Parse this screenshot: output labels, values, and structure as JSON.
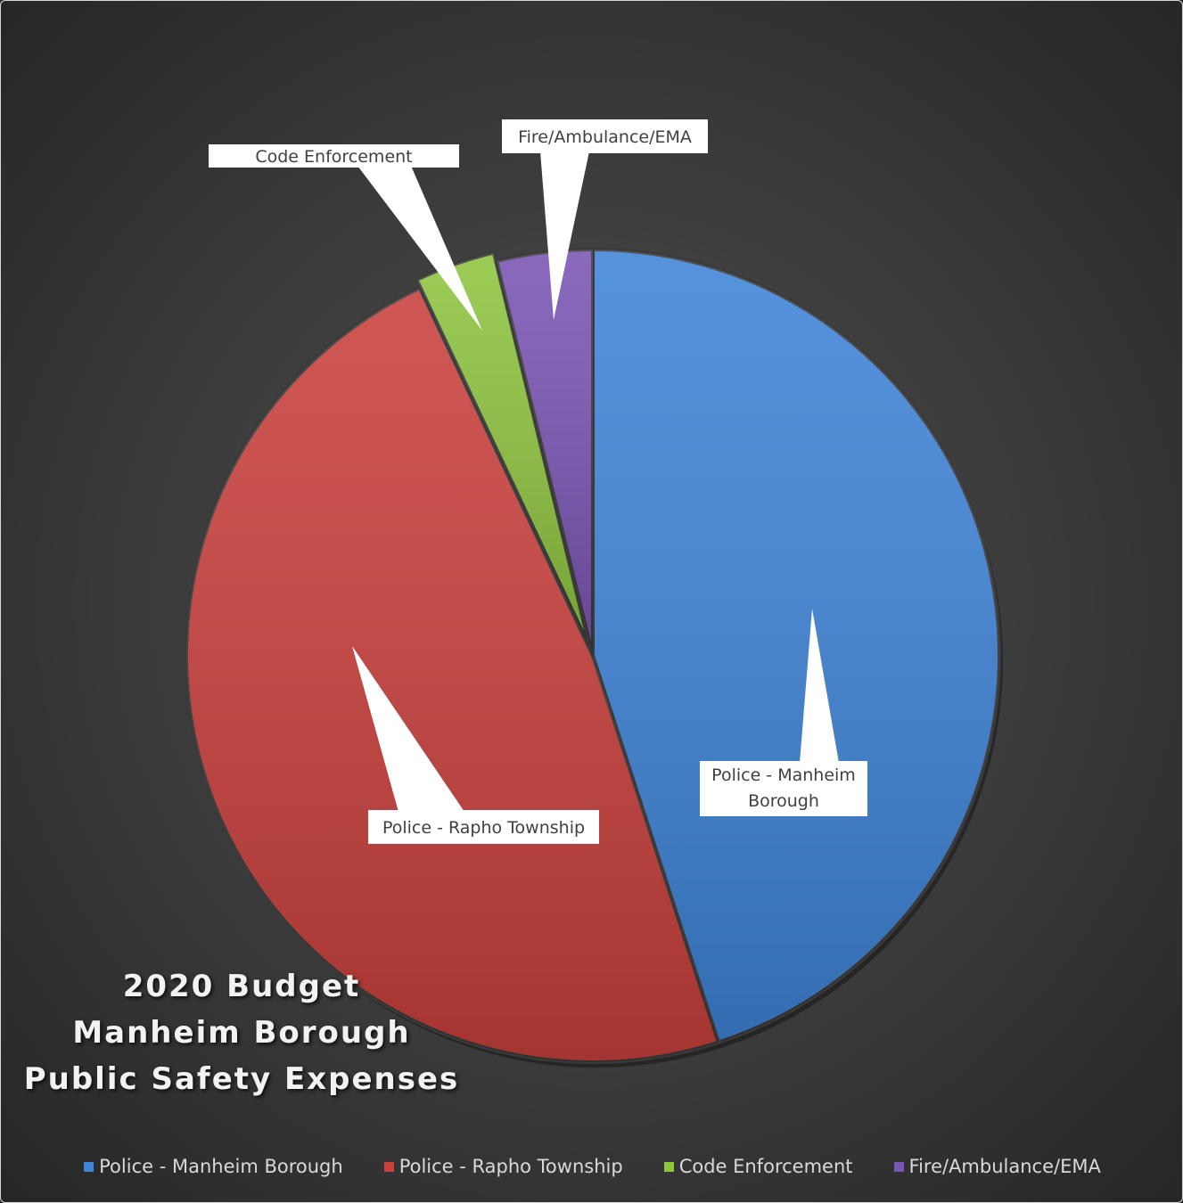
{
  "chart_data": {
    "type": "pie",
    "title_lines": [
      "2020 Budget",
      "Manheim Borough",
      "Public Safety Expenses"
    ],
    "slices": [
      {
        "label": "Police - Manheim Borough",
        "data_label": "Police - Manheim Borough",
        "value": 45.0,
        "color": "#3f84d8"
      },
      {
        "label": "Police - Rapho Township",
        "data_label": "Police - Rapho Township",
        "value": 48.0,
        "color": "#c9403c"
      },
      {
        "label": "Code Enforcement",
        "data_label": "Code Enforcement",
        "value": 3.2,
        "color": "#8fc43f"
      },
      {
        "label": "Fire/Ambulance/EMA",
        "data_label": "Fire/Ambulance/EMA",
        "value": 3.8,
        "color": "#7a55b3"
      }
    ],
    "legend_position": "bottom",
    "start_angle": "12 o'clock",
    "direction": "clockwise"
  }
}
